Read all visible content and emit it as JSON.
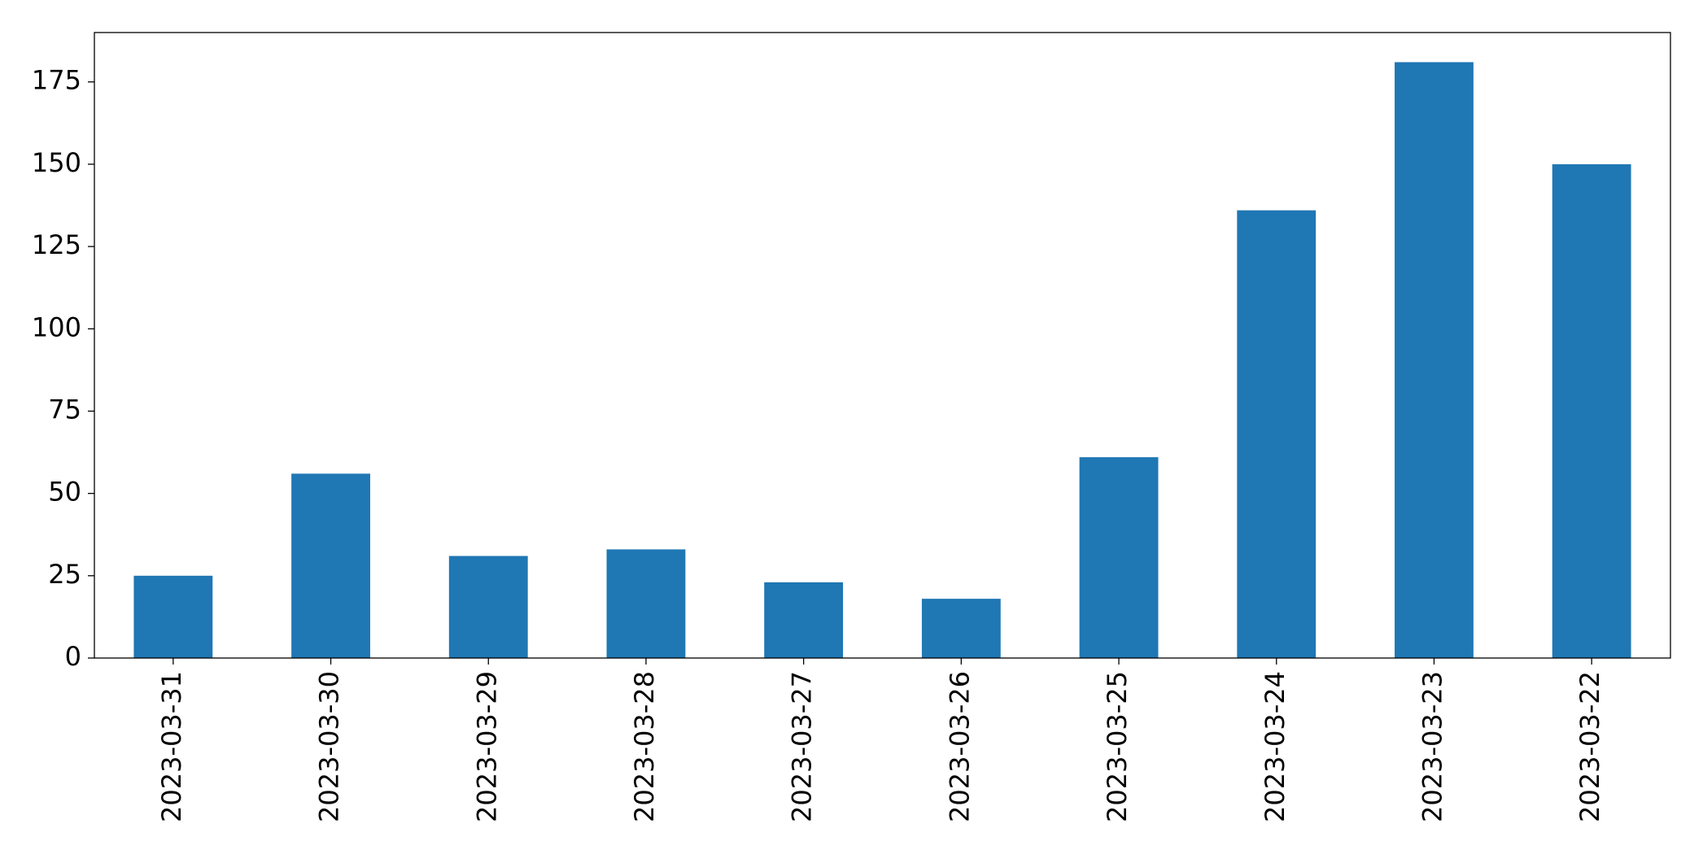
{
  "chart_data": {
    "type": "bar",
    "categories": [
      "2023-03-31",
      "2023-03-30",
      "2023-03-29",
      "2023-03-28",
      "2023-03-27",
      "2023-03-26",
      "2023-03-25",
      "2023-03-24",
      "2023-03-23",
      "2023-03-22"
    ],
    "values": [
      25,
      56,
      31,
      33,
      23,
      18,
      61,
      136,
      181,
      150
    ],
    "color": "#1f77b4",
    "ylim": [
      0,
      190
    ],
    "yticks": [
      0,
      25,
      50,
      75,
      100,
      125,
      150,
      175
    ],
    "grid": false
  }
}
